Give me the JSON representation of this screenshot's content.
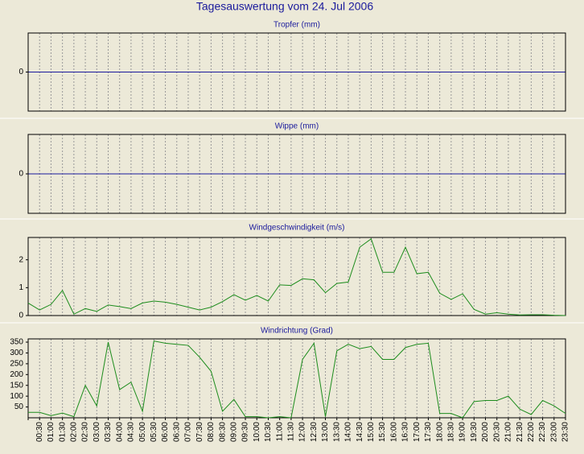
{
  "title": "Tagesauswertung vom 24. Jul 2006",
  "chart_data": [
    {
      "type": "line",
      "title": "Tropfer (mm)",
      "ylim": [
        -1,
        1
      ],
      "yticks": [
        0
      ],
      "color": "#1a1a9c"
    },
    {
      "type": "line",
      "title": "Wippe (mm)",
      "ylim": [
        -1,
        1
      ],
      "yticks": [
        0
      ],
      "color": "#1a1a9c"
    },
    {
      "type": "line",
      "title": "Windgeschwindigkeit (m/s)",
      "ylim": [
        0,
        2.8
      ],
      "yticks": [
        0,
        1,
        2
      ],
      "color": "#1c8c1c",
      "values": [
        0.45,
        0.2,
        0.4,
        0.9,
        0.05,
        0.25,
        0.15,
        0.38,
        0.32,
        0.25,
        0.45,
        0.52,
        0.48,
        0.4,
        0.3,
        0.2,
        0.3,
        0.5,
        0.75,
        0.55,
        0.72,
        0.52,
        1.1,
        1.08,
        1.32,
        1.28,
        0.82,
        1.15,
        1.2,
        2.45,
        2.75,
        1.55,
        1.55,
        2.45,
        1.5,
        1.55,
        0.8,
        0.58,
        0.78,
        0.22,
        0.05,
        0.1,
        0.05,
        0.02,
        0.03,
        0.03,
        0.01,
        0
      ]
    },
    {
      "type": "line",
      "title": "Windrichtung (Grad)",
      "ylim": [
        0,
        365
      ],
      "yticks": [
        50,
        100,
        150,
        200,
        250,
        300,
        350
      ],
      "color": "#1c8c1c",
      "categories": [
        null,
        "00:30",
        "01:00",
        "01:30",
        "02:00",
        "02:30",
        "03:00",
        "03:30",
        "04:00",
        "04:30",
        "05:00",
        "05:30",
        "06:00",
        "06:30",
        "07:00",
        "07:30",
        "08:00",
        "08:30",
        "09:00",
        "09:30",
        "10:00",
        "10:30",
        "11:00",
        "11:30",
        "12:00",
        "12:30",
        "13:00",
        "13:30",
        "14:00",
        "14:30",
        "15:00",
        "15:30",
        "16:00",
        "16:30",
        "17:00",
        "17:30",
        "18:00",
        "18:30",
        "19:00",
        "19:30",
        "20:00",
        "20:30",
        "21:00",
        "21:30",
        "22:00",
        "22:30",
        "23:00",
        "23:30"
      ],
      "values": [
        25,
        25,
        10,
        22,
        5,
        150,
        55,
        350,
        130,
        165,
        30,
        355,
        345,
        340,
        335,
        280,
        215,
        30,
        85,
        5,
        5,
        0,
        5,
        0,
        270,
        345,
        5,
        310,
        340,
        320,
        330,
        270,
        270,
        325,
        340,
        345,
        20,
        20,
        0,
        75,
        80,
        80,
        100,
        40,
        15,
        80,
        55,
        20
      ]
    }
  ]
}
